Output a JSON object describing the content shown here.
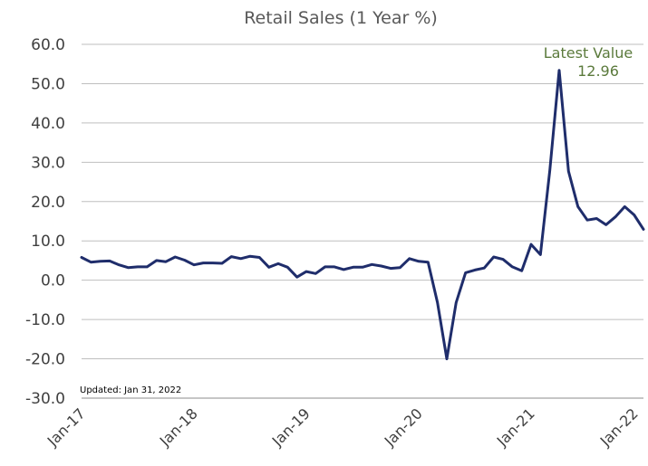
{
  "chart_data": {
    "type": "line",
    "title": "Retail Sales (1 Year %)",
    "xlabel": "",
    "ylabel": "",
    "ylim": [
      -30,
      60
    ],
    "yticks": [
      60,
      50,
      40,
      30,
      20,
      10,
      0,
      -10,
      -20,
      -30
    ],
    "ytick_labels": [
      "60.0",
      "50.0",
      "40.0",
      "30.0",
      "20.0",
      "10.0",
      "0.0",
      "-10.0",
      "-20.0",
      "-30.0"
    ],
    "xticks": [
      "Jan-17",
      "Jan-18",
      "Jan-19",
      "Jan-20",
      "Jan-21",
      "Jan-22"
    ],
    "grid": true,
    "legend": "none",
    "x_start": "Jan-17",
    "x_end": "Jan-22",
    "series": [
      {
        "color": "#1f2d6b",
        "x": [
          "Jan-17",
          "Feb-17",
          "Mar-17",
          "Apr-17",
          "May-17",
          "Jun-17",
          "Jul-17",
          "Aug-17",
          "Sep-17",
          "Oct-17",
          "Nov-17",
          "Dec-17",
          "Jan-18",
          "Feb-18",
          "Mar-18",
          "Apr-18",
          "May-18",
          "Jun-18",
          "Jul-18",
          "Aug-18",
          "Sep-18",
          "Oct-18",
          "Nov-18",
          "Dec-18",
          "Jan-19",
          "Feb-19",
          "Mar-19",
          "Apr-19",
          "May-19",
          "Jun-19",
          "Jul-19",
          "Aug-19",
          "Sep-19",
          "Oct-19",
          "Nov-19",
          "Dec-19",
          "Jan-20",
          "Feb-20",
          "Mar-20",
          "Apr-20",
          "May-20",
          "Jun-20",
          "Jul-20",
          "Aug-20",
          "Sep-20",
          "Oct-20",
          "Nov-20",
          "Dec-20",
          "Jan-21",
          "Feb-21",
          "Mar-21",
          "Apr-21",
          "May-21",
          "Jun-21",
          "Jul-21",
          "Aug-21",
          "Sep-21",
          "Oct-21",
          "Nov-21",
          "Dec-21",
          "Jan-22"
        ],
        "values": [
          5.8,
          4.6,
          4.8,
          4.9,
          3.9,
          3.2,
          3.4,
          3.4,
          5.0,
          4.7,
          5.9,
          5.1,
          3.9,
          4.4,
          4.4,
          4.3,
          6.0,
          5.5,
          6.1,
          5.8,
          3.3,
          4.2,
          3.3,
          0.8,
          2.2,
          1.7,
          3.4,
          3.4,
          2.7,
          3.3,
          3.3,
          4.0,
          3.6,
          3.0,
          3.2,
          5.5,
          4.8,
          4.6,
          -5.7,
          -20.0,
          -5.7,
          1.9,
          2.6,
          3.1,
          5.9,
          5.3,
          3.4,
          2.4,
          9.1,
          6.5,
          28.0,
          53.4,
          27.7,
          18.7,
          15.3,
          15.7,
          14.1,
          16.1,
          18.7,
          16.6,
          12.96
        ]
      }
    ],
    "annotation": {
      "label": "Latest Value",
      "value": "12.96",
      "color": "#5b7a3c"
    },
    "footnote": "Updated: Jan 31, 2022"
  }
}
